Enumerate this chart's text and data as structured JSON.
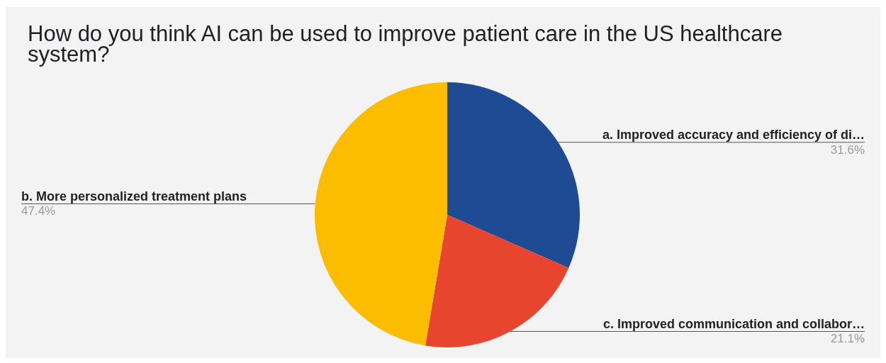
{
  "chart_data": {
    "type": "pie",
    "title": "How do you think AI can be used to improve patient care in the US healthcare system?",
    "categories": [
      "a. Improved accuracy and efficiency of di…",
      "c. Improved communication and collabor…",
      "b. More personalized treatment plans"
    ],
    "values": [
      31.6,
      21.1,
      47.4
    ],
    "value_labels": [
      "31.6%",
      "21.1%",
      "47.4%"
    ],
    "colors": [
      "#1f4a94",
      "#e8452e",
      "#fcbd00"
    ]
  }
}
